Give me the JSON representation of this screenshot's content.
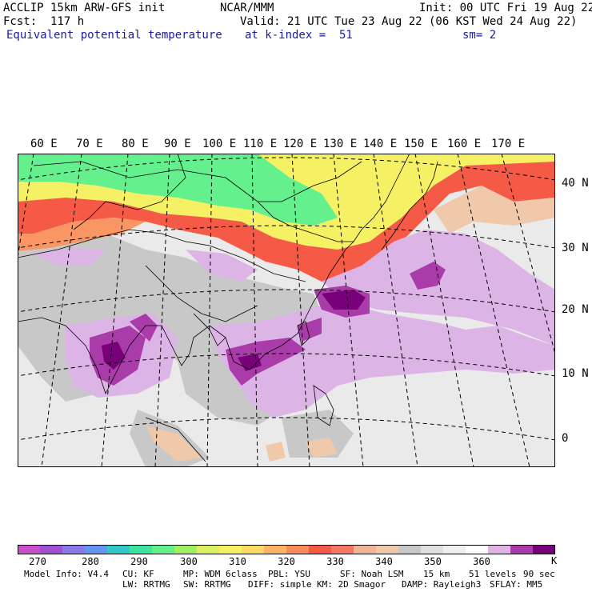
{
  "header": {
    "model_line": "ACCLIP 15km ARW-GFS init",
    "org": "NCAR/MMM",
    "init": "Init: 00 UTC Fri 19 Aug 22",
    "fcst": "Fcst:  117 h",
    "valid": "Valid: 21 UTC Tue 23 Aug 22 (06 KST Wed 24 Aug 22)",
    "field": "Equivalent potential temperature",
    "level": "at k-index =  51",
    "smooth": "sm= 2"
  },
  "map": {
    "lon_labels": [
      "60 E",
      "70 E",
      "80 E",
      "90 E",
      "100 E",
      "110 E",
      "120 E",
      "130 E",
      "140 E",
      "150 E",
      "160 E",
      "170 E"
    ],
    "lat_labels": [
      "40 N",
      "30 N",
      "20 N",
      "10 N",
      "0"
    ],
    "colors": {
      "ocean_gray": "#eaeaea",
      "land_gray": "#c8c8c8",
      "light_purple": "#dcb4e6",
      "mid_purple": "#aa3caa",
      "dark_purple": "#780078",
      "red": "#f55a46",
      "orange": "#fa9664",
      "yellow": "#f5f064",
      "green": "#64f08c",
      "tan": "#f0c8aa"
    }
  },
  "colorbar": {
    "unit": "K",
    "tick_labels": [
      "270",
      "280",
      "290",
      "300",
      "310",
      "320",
      "330",
      "340",
      "350",
      "360"
    ],
    "colors": [
      "#c850c8",
      "#a050d2",
      "#8c78e6",
      "#6496f0",
      "#32c8c8",
      "#3ce6a0",
      "#64f08c",
      "#a0f064",
      "#dcf064",
      "#f5f064",
      "#fadc64",
      "#fab464",
      "#f58c5a",
      "#f55a46",
      "#f57864",
      "#f0b496",
      "#f0c8aa",
      "#c8c8c8",
      "#e1e1e1",
      "#f0f0f0",
      "#ffffff",
      "#e1b4e6",
      "#aa3caa",
      "#780078"
    ]
  },
  "footer": {
    "line1": [
      "Model Info: V4.4",
      "CU: KF",
      "MP: WDM 6class",
      "PBL: YSU",
      "SF: Noah LSM",
      "15 km",
      "51 levels",
      "90 sec"
    ],
    "line2": [
      "LW: RRTMG",
      "SW: RRTMG",
      "DIFF: simple",
      "KM: 2D Smagor",
      "DAMP: Rayleigh3",
      "SFLAY: MM5"
    ]
  }
}
